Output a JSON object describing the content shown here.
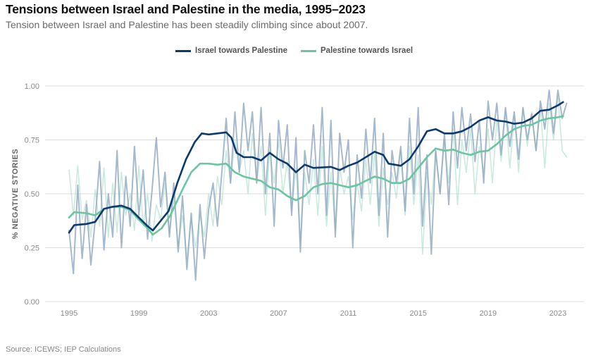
{
  "header": {
    "title": "Tensions between Israel and Palestine in the media, 1995–2023",
    "subtitle": "Tension between Israel and Palestine has been steadily climbing since about 2007."
  },
  "footer": {
    "source": "Source: ICEWS; IEP Calculations"
  },
  "chart_data": {
    "type": "line",
    "title": "Tensions between Israel and Palestine in the media, 1995–2023",
    "subtitle": "Tension between Israel and Palestine has been steadily climbing since about 2007.",
    "xlabel": "",
    "ylabel": "% NEGATIVE  STORIES",
    "xlim": [
      1994.6,
      2024.5
    ],
    "ylim": [
      0,
      1
    ],
    "x_ticks": [
      1995,
      1999,
      2003,
      2007,
      2011,
      2015,
      2019,
      2023
    ],
    "x_tick_labels": [
      "1995",
      "1999",
      "2003",
      "2007",
      "2011",
      "2015",
      "2019",
      "2023"
    ],
    "y_ticks": [
      0,
      0.25,
      0.5,
      0.75,
      1.0
    ],
    "y_tick_labels": [
      "0.00",
      "0.25",
      "0.50",
      "0.75",
      "1.00"
    ],
    "grid": "horizontal",
    "legend_position": "top-center",
    "colors": {
      "israel": "#0d3a6e",
      "palestine": "#6cc4a0",
      "israel_raw": "#8aa1bb",
      "palestine_raw": "#a8dcc8",
      "grid": "#dddddd"
    },
    "series": [
      {
        "name": "Israel towards Palestine",
        "kind": "smoothed",
        "x": [
          1995.0,
          1995.3,
          1996.0,
          1996.5,
          1997.0,
          1997.5,
          1998.0,
          1998.5,
          1999.0,
          1999.5,
          1999.8,
          2000.2,
          2000.7,
          2001.2,
          2001.7,
          2002.2,
          2002.6,
          2003.0,
          2003.5,
          2004.0,
          2004.3,
          2004.6,
          2005.0,
          2005.5,
          2006.0,
          2006.5,
          2007.0,
          2007.5,
          2008.0,
          2008.5,
          2009.0,
          2010.0,
          2010.5,
          2011.0,
          2011.5,
          2012.0,
          2012.5,
          2013.0,
          2013.3,
          2014.0,
          2014.5,
          2015.0,
          2015.5,
          2016.0,
          2016.5,
          2017.0,
          2017.5,
          2018.0,
          2018.5,
          2019.0,
          2019.5,
          2020.0,
          2020.5,
          2021.0,
          2021.5,
          2022.0,
          2022.5,
          2023.0,
          2023.3
        ],
        "values": [
          0.32,
          0.355,
          0.36,
          0.37,
          0.43,
          0.44,
          0.445,
          0.43,
          0.39,
          0.35,
          0.33,
          0.37,
          0.42,
          0.55,
          0.66,
          0.74,
          0.78,
          0.775,
          0.78,
          0.785,
          0.76,
          0.69,
          0.67,
          0.67,
          0.655,
          0.69,
          0.66,
          0.64,
          0.6,
          0.635,
          0.62,
          0.625,
          0.61,
          0.63,
          0.645,
          0.67,
          0.695,
          0.68,
          0.64,
          0.63,
          0.66,
          0.72,
          0.79,
          0.8,
          0.78,
          0.78,
          0.79,
          0.81,
          0.84,
          0.855,
          0.84,
          0.835,
          0.825,
          0.83,
          0.85,
          0.885,
          0.89,
          0.91,
          0.925
        ]
      },
      {
        "name": "Palestine towards Israel",
        "kind": "smoothed",
        "x": [
          1995.0,
          1995.3,
          1996.0,
          1996.5,
          1997.0,
          1997.5,
          1998.0,
          1998.5,
          1999.0,
          1999.5,
          1999.8,
          2000.3,
          2000.8,
          2001.5,
          2002.0,
          2002.5,
          2003.0,
          2003.5,
          2004.0,
          2004.5,
          2005.0,
          2005.5,
          2006.0,
          2006.5,
          2007.0,
          2007.5,
          2008.0,
          2008.5,
          2009.0,
          2009.5,
          2010.0,
          2011.0,
          2011.5,
          2012.0,
          2012.5,
          2013.0,
          2013.5,
          2014.0,
          2014.5,
          2015.0,
          2015.5,
          2016.0,
          2016.5,
          2017.0,
          2017.5,
          2018.0,
          2018.5,
          2019.0,
          2019.5,
          2020.0,
          2020.5,
          2021.0,
          2021.5,
          2022.0,
          2022.5,
          2023.0,
          2023.3
        ],
        "values": [
          0.39,
          0.415,
          0.41,
          0.4,
          0.43,
          0.44,
          0.44,
          0.425,
          0.38,
          0.34,
          0.31,
          0.34,
          0.4,
          0.52,
          0.6,
          0.64,
          0.64,
          0.635,
          0.64,
          0.6,
          0.58,
          0.57,
          0.56,
          0.53,
          0.52,
          0.49,
          0.47,
          0.49,
          0.53,
          0.545,
          0.55,
          0.53,
          0.54,
          0.56,
          0.58,
          0.57,
          0.55,
          0.55,
          0.57,
          0.62,
          0.67,
          0.71,
          0.7,
          0.705,
          0.69,
          0.68,
          0.695,
          0.7,
          0.73,
          0.77,
          0.8,
          0.815,
          0.82,
          0.84,
          0.85,
          0.855,
          0.86
        ]
      },
      {
        "name": "Israel towards Palestine (raw)",
        "kind": "raw",
        "x_start": 1995.0,
        "x_step": 0.25,
        "values": [
          0.33,
          0.13,
          0.54,
          0.2,
          0.45,
          0.17,
          0.38,
          0.65,
          0.24,
          0.5,
          0.3,
          0.7,
          0.25,
          0.58,
          0.35,
          0.72,
          0.4,
          0.61,
          0.29,
          0.51,
          0.76,
          0.44,
          0.6,
          0.3,
          0.55,
          0.23,
          0.49,
          0.15,
          0.41,
          0.1,
          0.45,
          0.2,
          0.43,
          0.55,
          0.35,
          0.6,
          0.85,
          0.55,
          0.88,
          0.6,
          0.92,
          0.7,
          0.88,
          0.55,
          0.9,
          0.5,
          0.78,
          0.35,
          0.84,
          0.62,
          0.82,
          0.4,
          0.76,
          0.23,
          0.7,
          0.55,
          0.82,
          0.5,
          0.9,
          0.4,
          0.84,
          0.3,
          0.78,
          0.6,
          0.75,
          0.25,
          0.68,
          0.48,
          0.8,
          0.55,
          0.85,
          0.4,
          0.78,
          0.3,
          0.7,
          0.55,
          0.72,
          0.42,
          0.85,
          0.5,
          0.9,
          0.35,
          0.68,
          0.22,
          0.7,
          0.5,
          0.78,
          0.45,
          0.88,
          0.62,
          0.9,
          0.7,
          0.87,
          0.65,
          0.84,
          0.55,
          0.93,
          0.75,
          0.92,
          0.68,
          0.9,
          0.72,
          0.88,
          0.66,
          0.9,
          0.75,
          0.87,
          0.7,
          0.93,
          0.8,
          0.98,
          0.78,
          0.98,
          0.85,
          0.92
        ]
      },
      {
        "name": "Palestine towards Israel (raw)",
        "kind": "raw",
        "x_start": 1995.0,
        "x_step": 0.25,
        "values": [
          0.61,
          0.4,
          0.63,
          0.38,
          0.47,
          0.3,
          0.52,
          0.35,
          0.62,
          0.3,
          0.55,
          0.32,
          0.6,
          0.4,
          0.5,
          0.33,
          0.63,
          0.35,
          0.5,
          0.28,
          0.45,
          0.38,
          0.55,
          0.32,
          0.48,
          0.25,
          0.4,
          0.2,
          0.38,
          0.25,
          0.4,
          0.3,
          0.5,
          0.35,
          0.58,
          0.45,
          0.7,
          0.55,
          0.75,
          0.6,
          0.7,
          0.5,
          0.78,
          0.55,
          0.72,
          0.4,
          0.7,
          0.55,
          0.75,
          0.5,
          0.65,
          0.42,
          0.62,
          0.28,
          0.6,
          0.45,
          0.66,
          0.4,
          0.72,
          0.35,
          0.6,
          0.33,
          0.62,
          0.5,
          0.58,
          0.38,
          0.55,
          0.42,
          0.66,
          0.45,
          0.7,
          0.35,
          0.62,
          0.45,
          0.6,
          0.48,
          0.7,
          0.4,
          0.72,
          0.45,
          0.68,
          0.22,
          0.6,
          0.45,
          0.7,
          0.5,
          0.75,
          0.55,
          0.8,
          0.45,
          0.75,
          0.6,
          0.8,
          0.5,
          0.72,
          0.6,
          0.8,
          0.55,
          0.85,
          0.65,
          0.88,
          0.62,
          0.86,
          0.6,
          0.9,
          0.72,
          0.88,
          0.7,
          0.9,
          0.62,
          0.92,
          0.75,
          0.95,
          0.7,
          0.67
        ]
      }
    ]
  }
}
